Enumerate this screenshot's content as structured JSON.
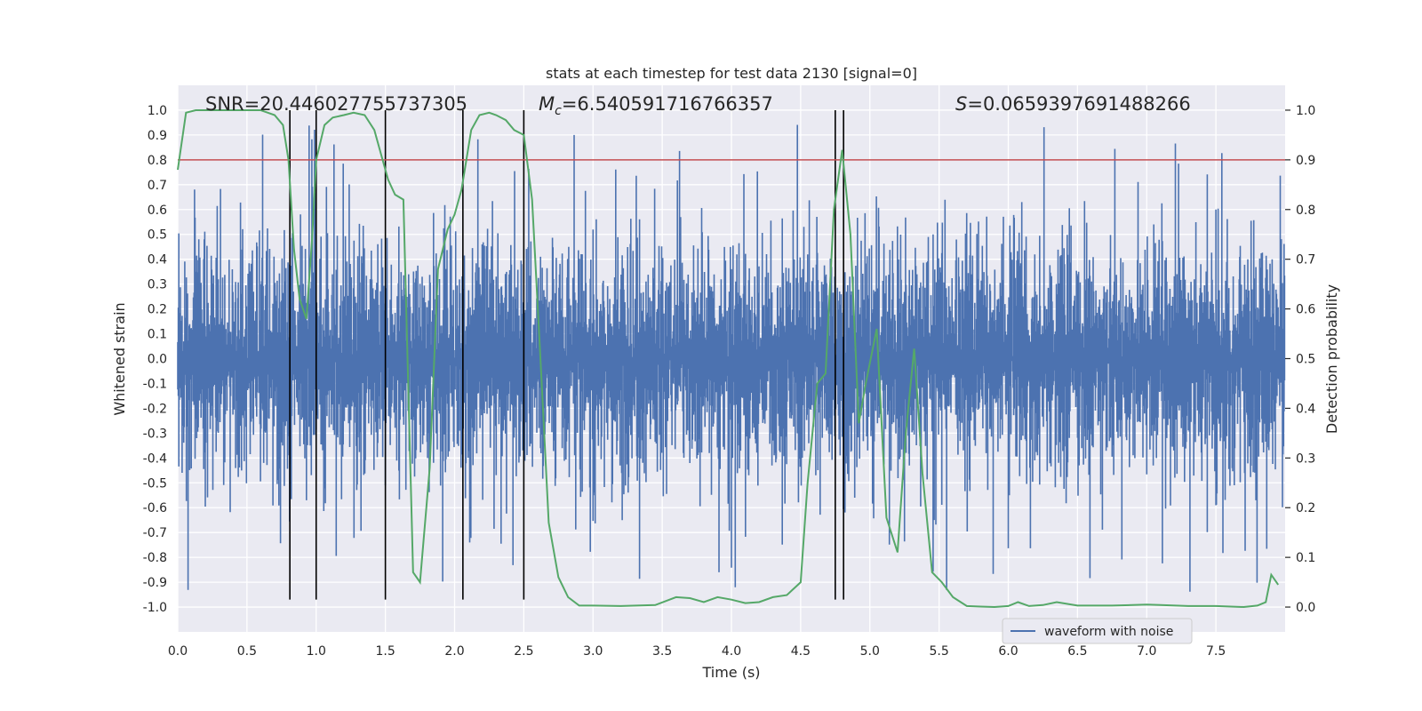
{
  "chart_data": {
    "type": "line",
    "title": "stats at each timestep for test data 2130 [signal=0]",
    "xlabel": "Time (s)",
    "ylabel": "Whitened strain",
    "y2label": "Detection probability",
    "xlim": [
      0.0,
      8.0
    ],
    "ylim": [
      -1.1,
      1.1
    ],
    "y2lim": [
      -0.05,
      1.05
    ],
    "x_ticks": [
      0.0,
      0.5,
      1.0,
      1.5,
      2.0,
      2.5,
      3.0,
      3.5,
      4.0,
      4.5,
      5.0,
      5.5,
      6.0,
      6.5,
      7.0,
      7.5
    ],
    "x_tick_labels": [
      "0.0",
      "0.5",
      "1.0",
      "1.5",
      "2.0",
      "2.5",
      "3.0",
      "3.5",
      "4.0",
      "4.5",
      "5.0",
      "5.5",
      "6.0",
      "6.5",
      "7.0",
      "7.5"
    ],
    "y_ticks": [
      1.0,
      0.9,
      0.8,
      0.7,
      0.6,
      0.5,
      0.4,
      0.3,
      0.2,
      0.1,
      0.0,
      -0.1,
      -0.2,
      -0.3,
      -0.4,
      -0.5,
      -0.6,
      -0.7,
      -0.8,
      -0.9,
      -1.0
    ],
    "y_tick_labels": [
      "1.0",
      "0.9",
      "0.8",
      "0.7",
      "0.6",
      "0.5",
      "0.4",
      "0.3",
      "0.2",
      "0.1",
      "0.0",
      "-0.1",
      "-0.2",
      "-0.3",
      "-0.4",
      "-0.5",
      "-0.6",
      "-0.7",
      "-0.8",
      "-0.9",
      "-1.0"
    ],
    "y2_ticks": [
      1.0,
      0.9,
      0.8,
      0.7,
      0.6,
      0.5,
      0.4,
      0.3,
      0.2,
      0.1,
      0.0
    ],
    "y2_tick_labels": [
      "1.0",
      "0.9",
      "0.8",
      "0.7",
      "0.6",
      "0.5",
      "0.4",
      "0.3",
      "0.2",
      "0.1",
      "0.0"
    ],
    "annotations": {
      "snr": "SNR=20.446027755737305",
      "mc_symbol": "M",
      "mc_sub": "c",
      "mc_value": "=6.540591716766357",
      "s_symbol": "S",
      "s_value": "=0.0659397691488266"
    },
    "legend": {
      "label": "waveform with noise",
      "position": "lower-right"
    },
    "threshold": {
      "y2_value": 0.9,
      "color": "#c44e52"
    },
    "event_markers_x": [
      0.81,
      1.0,
      1.5,
      2.06,
      2.5,
      4.75,
      4.81
    ],
    "event_marker_ylim": [
      -0.97,
      1.0
    ],
    "waveform": {
      "name": "waveform with noise",
      "color": "#4c72b0",
      "samples": 2048,
      "typical_envelope": 0.42,
      "max_abs": 1.0,
      "seed": 2130
    },
    "probability": {
      "name": "detection probability",
      "color": "#55a868",
      "x": [
        0.0,
        0.06,
        0.13,
        0.2,
        0.3,
        0.45,
        0.6,
        0.7,
        0.76,
        0.8,
        0.84,
        0.88,
        0.93,
        0.97,
        1.0,
        1.06,
        1.12,
        1.2,
        1.27,
        1.35,
        1.42,
        1.48,
        1.52,
        1.57,
        1.63,
        1.7,
        1.75,
        1.82,
        1.88,
        1.95,
        2.0,
        2.05,
        2.12,
        2.18,
        2.25,
        2.3,
        2.37,
        2.43,
        2.5,
        2.56,
        2.62,
        2.68,
        2.75,
        2.82,
        2.9,
        3.0,
        3.2,
        3.45,
        3.6,
        3.7,
        3.8,
        3.9,
        4.0,
        4.1,
        4.2,
        4.3,
        4.4,
        4.5,
        4.55,
        4.62,
        4.68,
        4.74,
        4.8,
        4.86,
        4.92,
        4.97,
        5.05,
        5.12,
        5.2,
        5.26,
        5.32,
        5.38,
        5.45,
        5.52,
        5.6,
        5.7,
        5.8,
        5.9,
        6.0,
        6.07,
        6.15,
        6.25,
        6.35,
        6.5,
        6.75,
        7.0,
        7.1,
        7.3,
        7.5,
        7.7,
        7.8,
        7.86,
        7.9,
        7.95
      ],
      "y": [
        0.88,
        0.995,
        1.0,
        1.0,
        1.0,
        1.0,
        1.0,
        0.99,
        0.97,
        0.9,
        0.72,
        0.62,
        0.58,
        0.74,
        0.9,
        0.97,
        0.985,
        0.99,
        0.995,
        0.99,
        0.96,
        0.9,
        0.86,
        0.83,
        0.82,
        0.07,
        0.05,
        0.28,
        0.68,
        0.76,
        0.79,
        0.84,
        0.96,
        0.99,
        0.995,
        0.99,
        0.98,
        0.96,
        0.95,
        0.82,
        0.5,
        0.17,
        0.06,
        0.02,
        0.003,
        0.003,
        0.002,
        0.004,
        0.02,
        0.018,
        0.01,
        0.02,
        0.015,
        0.008,
        0.01,
        0.02,
        0.024,
        0.05,
        0.25,
        0.45,
        0.47,
        0.8,
        0.92,
        0.75,
        0.37,
        0.45,
        0.56,
        0.18,
        0.11,
        0.35,
        0.52,
        0.27,
        0.07,
        0.05,
        0.02,
        0.002,
        0.001,
        0.0,
        0.002,
        0.01,
        0.002,
        0.004,
        0.01,
        0.003,
        0.003,
        0.005,
        0.004,
        0.002,
        0.002,
        0.0,
        0.003,
        0.01,
        0.065,
        0.045
      ]
    },
    "grid": true,
    "background": "#eaeaf2"
  }
}
